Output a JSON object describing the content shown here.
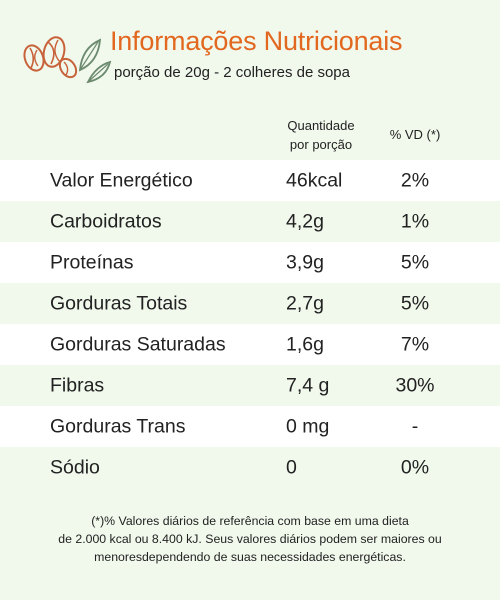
{
  "header": {
    "title": "Informações Nutricionais",
    "subtitle": "porção de 20g  - 2 colheres de sopa"
  },
  "columns": {
    "quantity_line1": "Quantidade",
    "quantity_line2": "por porção",
    "daily_value": "% VD (*)"
  },
  "rows": [
    {
      "name": "Valor Energético",
      "quantity": "46kcal",
      "dv": "2%"
    },
    {
      "name": "Carboidratos",
      "quantity": "4,2g",
      "dv": "1%"
    },
    {
      "name": "Proteínas",
      "quantity": "3,9g",
      "dv": "5%"
    },
    {
      "name": "Gorduras Totais",
      "quantity": "2,7g",
      "dv": "5%"
    },
    {
      "name": "Gorduras Saturadas",
      "quantity": "1,6g",
      "dv": "7%"
    },
    {
      "name": "Fibras",
      "quantity": "7,4 g",
      "dv": "30%"
    },
    {
      "name": "Gorduras Trans",
      "quantity": "0 mg",
      "dv": "-"
    },
    {
      "name": "Sódio",
      "quantity": "0",
      "dv": "0%"
    }
  ],
  "footnote": {
    "line1": "(*)% Valores diários de referência com base em uma dieta",
    "line2": "de 2.000 kcal ou 8.400 kJ. Seus valores diários podem ser maiores ou",
    "line3": "menoresdependendo de suas necessidades energéticas."
  },
  "icons": {
    "logo": "nuts-and-leaves-icon"
  },
  "colors": {
    "accent": "#e2671f",
    "background": "#f1f8ec",
    "row_light": "#ffffff"
  }
}
